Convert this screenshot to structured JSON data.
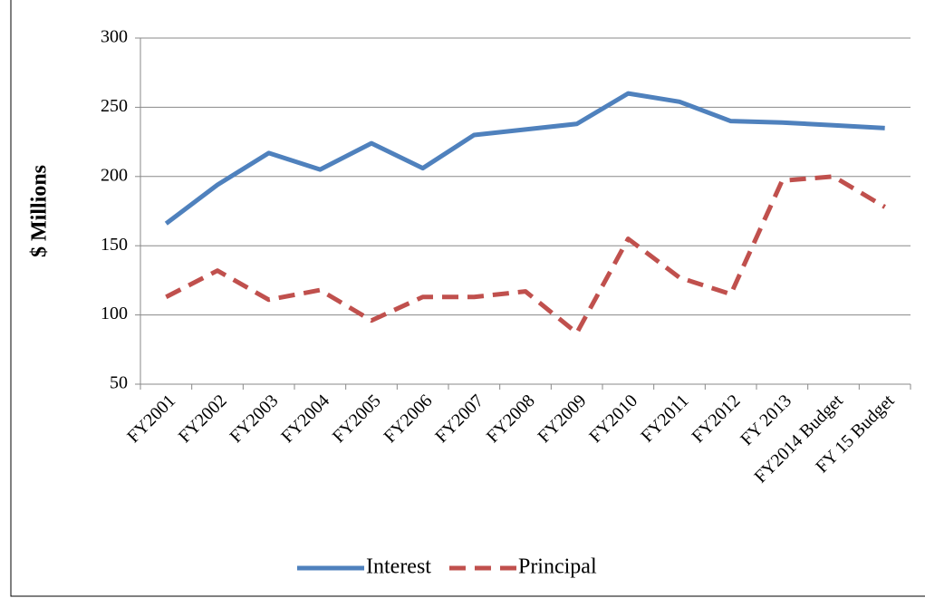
{
  "chart_data": {
    "type": "line",
    "y_label": "$ Millions",
    "categories": [
      "FY2001",
      "FY2002",
      "FY2003",
      "FY2004",
      "FY2005",
      "FY2006",
      "FY2007",
      "FY2008",
      "FY2009",
      "FY2010",
      "FY2011",
      "FY2012",
      "FY 2013",
      "FY2014 Budget",
      "FY 15 Budget"
    ],
    "series": [
      {
        "name": "Interest",
        "color": "#4f81bd",
        "dashed": false,
        "values": [
          166,
          194,
          217,
          205,
          224,
          206,
          230,
          234,
          238,
          260,
          254,
          240,
          239,
          237,
          235
        ]
      },
      {
        "name": "Principal",
        "color": "#c0504d",
        "dashed": true,
        "values": [
          113,
          132,
          111,
          118,
          96,
          113,
          113,
          117,
          87,
          155,
          127,
          115,
          197,
          200,
          178
        ]
      }
    ],
    "ylim": [
      50,
      300
    ],
    "yticks": [
      50,
      100,
      150,
      200,
      250,
      300
    ],
    "grid": true,
    "legend": "bottom"
  }
}
